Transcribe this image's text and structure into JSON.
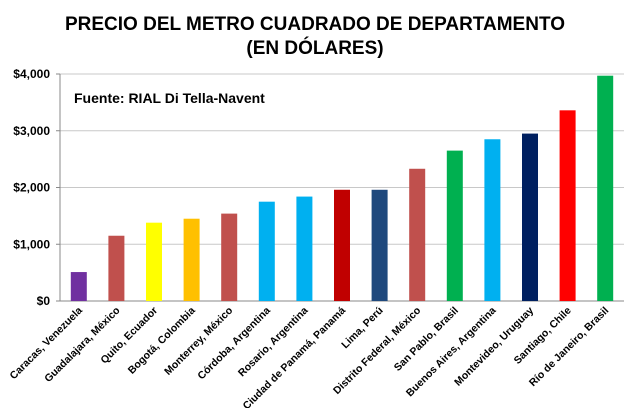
{
  "title_line1": "PRECIO DEL METRO CUADRADO DE DEPARTAMENTO",
  "title_line2": "(EN DÓLARES)",
  "source": "Fuente: RIAL Di Tella-Navent",
  "chart_data": {
    "type": "bar",
    "title": "PRECIO DEL METRO CUADRADO DE DEPARTAMENTO (EN DÓLARES)",
    "ylabel": "",
    "xlabel": "",
    "ylim": [
      0,
      4000
    ],
    "yticks": [
      0,
      1000,
      2000,
      3000,
      4000
    ],
    "ytick_labels": [
      "$0",
      "$1,000",
      "$2,000",
      "$3,000",
      "$4,000"
    ],
    "categories": [
      "Caracas, Venezuela",
      "Guadalajara, México",
      "Quito, Ecuador",
      "Bogotá, Colombia",
      "Monterrey, México",
      "Córdoba, Argentina",
      "Rosario, Argentina",
      "Ciudad de Panamá, Panamá",
      "Lima, Perú",
      "Distrito Federal, México",
      "San Pablo, Brasil",
      "Buenos Aires, Argentina",
      "Montevideo, Uruguay",
      "Santiago, Chile",
      "Río de Janeiro, Brasil"
    ],
    "values": [
      510,
      1150,
      1380,
      1450,
      1540,
      1750,
      1840,
      1960,
      1960,
      2330,
      2650,
      2850,
      2950,
      3360,
      3970
    ],
    "colors": [
      "#7030A0",
      "#C0504D",
      "#FFFF00",
      "#FFC000",
      "#C0504D",
      "#00B0F0",
      "#00B0F0",
      "#C00000",
      "#1F497D",
      "#C0504D",
      "#00B050",
      "#00B0F0",
      "#002060",
      "#FF0000",
      "#00B050"
    ]
  }
}
